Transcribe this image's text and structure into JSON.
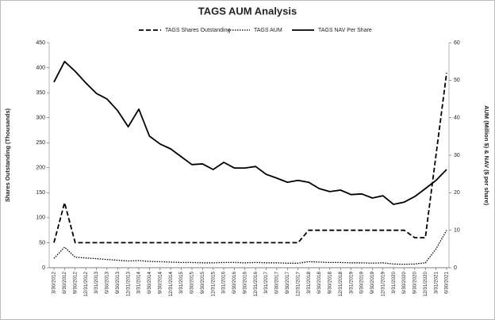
{
  "chart_data": {
    "type": "line",
    "title": "TAGS AUM Analysis",
    "y_label": "Shares Outstanding (Thousands)",
    "y2_label": "AUM (Million $) & NAV ($ per share)",
    "categories": [
      "3/30/2012",
      "6/30/2012",
      "9/30/2012",
      "12/31/2012",
      "3/31/2013",
      "6/30/2013",
      "9/30/2013",
      "12/31/2013",
      "3/31/2014",
      "6/30/2014",
      "9/30/2014",
      "12/31/2014",
      "3/31/2015",
      "6/30/2015",
      "9/30/2015",
      "12/31/2015",
      "3/31/2016",
      "6/30/2016",
      "9/30/2016",
      "12/31/2016",
      "3/31/2017",
      "6/30/2017",
      "9/30/2017",
      "12/31/2017",
      "3/31/2018",
      "6/30/2018",
      "9/30/2018",
      "12/31/2018",
      "3/31/2019",
      "6/30/2019",
      "9/30/2019",
      "12/31/2019",
      "3/31/2020",
      "6/30/2020",
      "9/30/2020",
      "12/31/2020",
      "3/31/2021",
      "6/30/2021"
    ],
    "series": [
      {
        "name": "TAGS Shares Outstanding",
        "color": "#000000",
        "dash": "dashed",
        "axis": "y",
        "values": [
          50,
          130,
          50,
          50,
          50,
          50,
          50,
          50,
          50,
          50,
          50,
          50,
          50,
          50,
          50,
          50,
          50,
          50,
          50,
          50,
          50,
          50,
          50,
          50,
          75,
          75,
          75,
          75,
          75,
          75,
          75,
          75,
          75,
          75,
          60,
          60,
          225,
          390
        ]
      },
      {
        "name": "TAGS AUM",
        "color": "#000000",
        "dash": "dotted",
        "axis": "y2",
        "values": [
          2.5,
          5.5,
          2.8,
          2.6,
          2.4,
          2.2,
          2.0,
          1.8,
          1.9,
          1.7,
          1.6,
          1.5,
          1.4,
          1.4,
          1.3,
          1.3,
          1.4,
          1.4,
          1.3,
          1.4,
          1.3,
          1.3,
          1.2,
          1.2,
          1.6,
          1.5,
          1.4,
          1.4,
          1.3,
          1.3,
          1.2,
          1.3,
          1.0,
          0.9,
          1.0,
          1.3,
          5,
          10
        ]
      },
      {
        "name": "TAGS NAV Per Share",
        "color": "#000000",
        "dash": "solid",
        "axis": "y2",
        "values": [
          49.5,
          55,
          52.4,
          49.3,
          46.5,
          45,
          41.9,
          37.6,
          42.3,
          35.1,
          33,
          31.7,
          29.6,
          27.5,
          27.7,
          26.2,
          28.1,
          26.6,
          26.6,
          27,
          24.9,
          23.9,
          22.8,
          23.3,
          22.8,
          21.1,
          20.3,
          20.7,
          19.5,
          19.7,
          18.6,
          19.2,
          16.9,
          17.5,
          19,
          21.1,
          23.3,
          26.2
        ]
      }
    ],
    "ylim": [
      0,
      450
    ],
    "yticks": [
      0,
      50,
      100,
      150,
      200,
      250,
      300,
      350,
      400,
      450
    ],
    "y2lim": [
      0,
      60
    ],
    "y2ticks": [
      0,
      10,
      20,
      30,
      40,
      50,
      60
    ],
    "grid": false,
    "legend": "top"
  }
}
